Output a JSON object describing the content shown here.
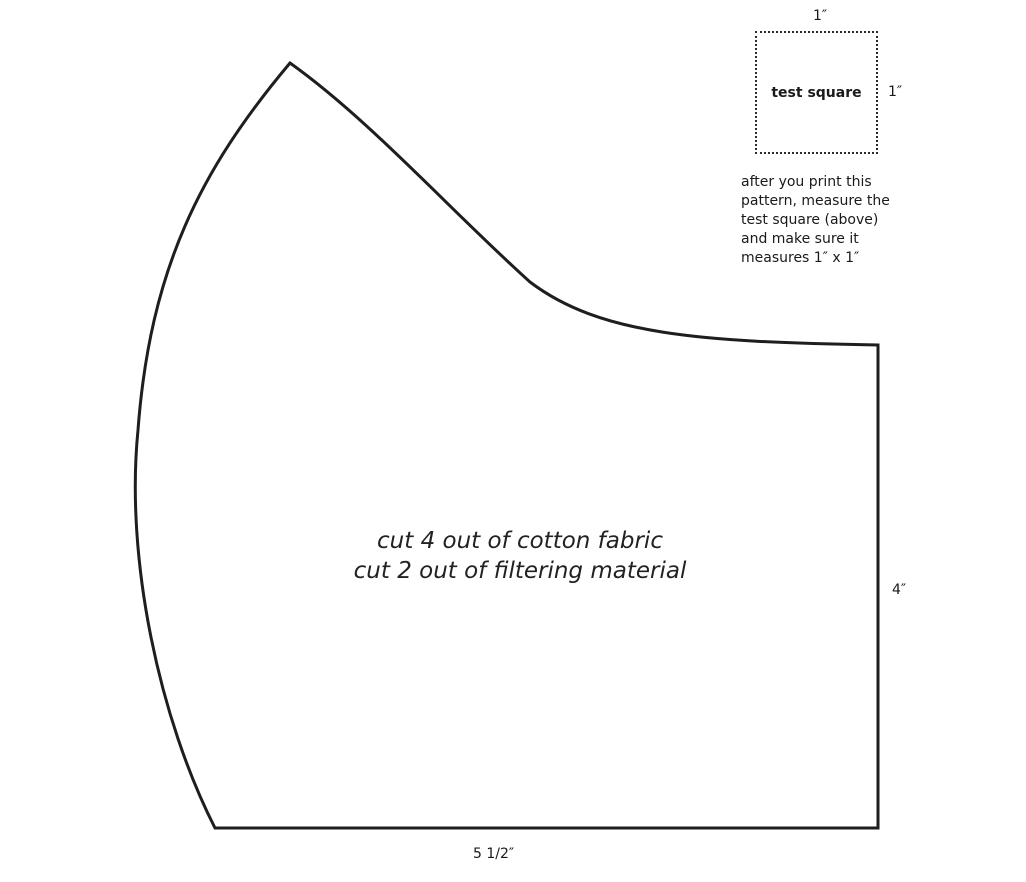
{
  "test_square": {
    "width_label": "1″",
    "height_label": "1″",
    "label": "test square"
  },
  "note": "after you print this\npattern, measure the\ntest square (above)\nand make sure it\nmeasures 1″ x 1″",
  "instructions": {
    "line1": "cut 4 out of cotton fabric",
    "line2": "cut 2 out of filtering material"
  },
  "dimensions": {
    "height_label": "4″",
    "width_label": "5 1/2″"
  },
  "colors": {
    "outline": "#1e1e1e",
    "text": "#1a1a1a"
  }
}
